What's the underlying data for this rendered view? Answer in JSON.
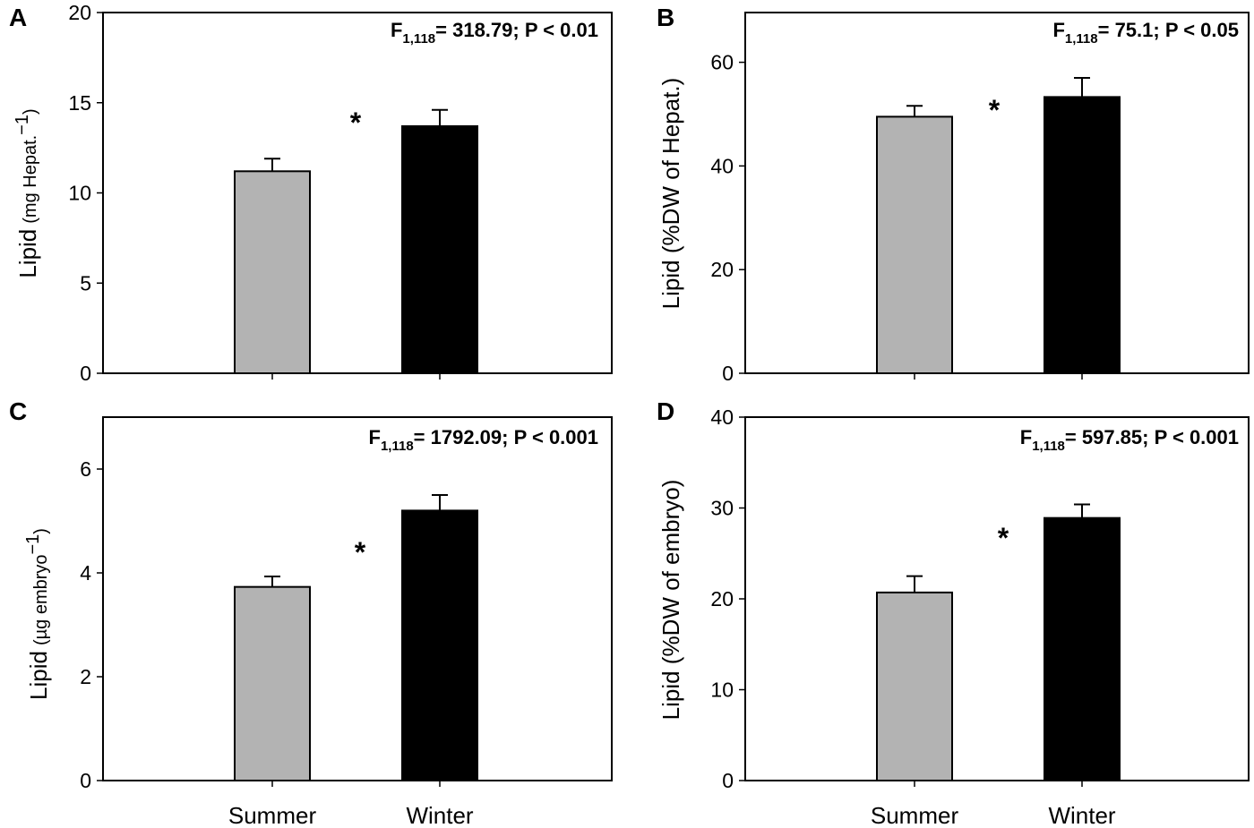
{
  "x_categories": [
    "Summer",
    "Winter"
  ],
  "colors": {
    "summer": "#b3b3b3",
    "winter": "#000000"
  },
  "chart_data": [
    {
      "type": "bar",
      "panel": "A",
      "categories": [
        "Summer",
        "Winter"
      ],
      "values": [
        11.2,
        13.7
      ],
      "errors": [
        0.7,
        0.9
      ],
      "ylim": [
        0,
        20
      ],
      "yticks": [
        0,
        5,
        10,
        15,
        20
      ],
      "ylabel": {
        "main": "Lipid",
        "unit": "(mg Hepat.",
        "sup": "−1",
        "close": ")"
      },
      "stat": {
        "F": "F",
        "sub": "1,118",
        "text": "= 318.79; P < 0.01"
      },
      "significance": "*"
    },
    {
      "type": "bar",
      "panel": "B",
      "categories": [
        "Summer",
        "Winter"
      ],
      "values": [
        49.5,
        53.3
      ],
      "errors": [
        2.1,
        3.7
      ],
      "ylim": [
        0,
        69.6
      ],
      "yticks": [
        0,
        20,
        40,
        60
      ],
      "ylabel": {
        "main": "Lipid (%DW of Hepat.)",
        "unit": "",
        "sup": "",
        "close": ""
      },
      "stat": {
        "F": "F",
        "sub": "1,118",
        "text": "= 75.1; P < 0.05"
      },
      "significance": "*"
    },
    {
      "type": "bar",
      "panel": "C",
      "categories": [
        "Summer",
        "Winter"
      ],
      "values": [
        3.73,
        5.2
      ],
      "errors": [
        0.2,
        0.3
      ],
      "ylim": [
        0,
        7
      ],
      "yticks": [
        0,
        2,
        4,
        6
      ],
      "ylabel": {
        "main": "Lipid",
        "unit": "(µg embryo",
        "sup": "−1",
        "close": ")"
      },
      "stat": {
        "F": "F",
        "sub": "1,118",
        "text": "= 1792.09; P < 0.001"
      },
      "significance": "*"
    },
    {
      "type": "bar",
      "panel": "D",
      "categories": [
        "Summer",
        "Winter"
      ],
      "values": [
        20.7,
        28.9
      ],
      "errors": [
        1.8,
        1.5
      ],
      "ylim": [
        0,
        40
      ],
      "yticks": [
        0,
        10,
        20,
        30,
        40
      ],
      "ylabel": {
        "main": "Lipid (%DW of embryo)",
        "unit": "",
        "sup": "",
        "close": ""
      },
      "stat": {
        "F": "F",
        "sub": "1,118",
        "text": "= 597.85; P < 0.001"
      },
      "significance": "*"
    }
  ]
}
